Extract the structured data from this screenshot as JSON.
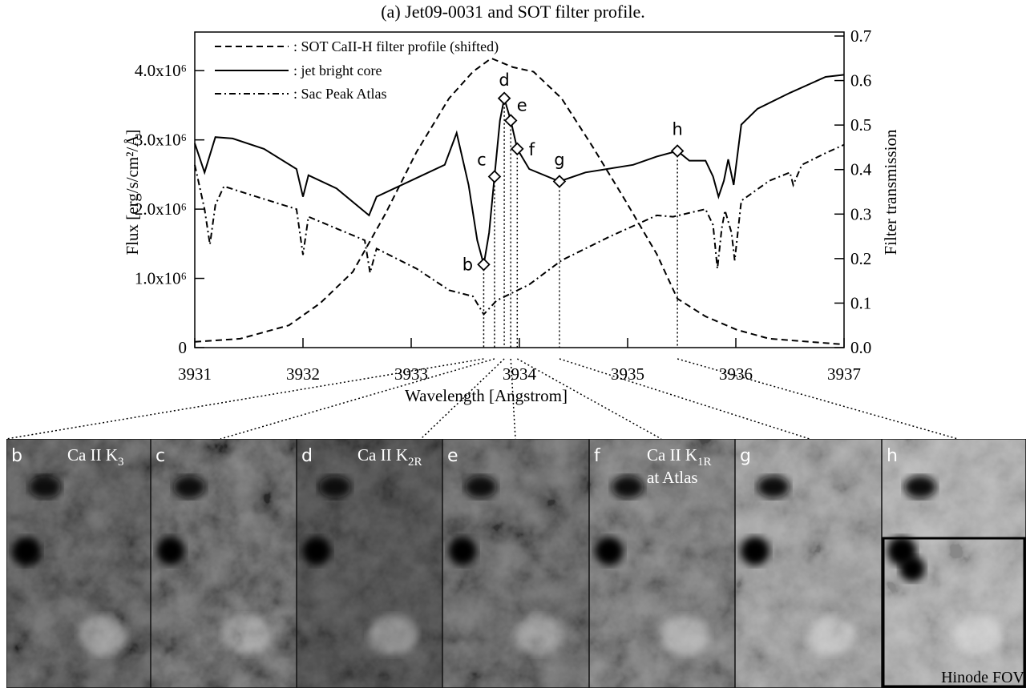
{
  "chart_data": {
    "type": "line",
    "title": "(a) Jet09-0031 and SOT filter profile.",
    "xlabel": "Wavelength [Angstrom]",
    "ylabel": "Flux [erg/s/cm²/Å]",
    "y2label": "Filter transmission",
    "xlim": [
      3931,
      3937
    ],
    "xticks": [
      3931,
      3932,
      3933,
      3934,
      3935,
      3936,
      3937
    ],
    "ylim": [
      0,
      4500000
    ],
    "yticks": [
      0,
      {
        "value": 1000000,
        "label": "1.0x10⁶"
      },
      {
        "value": 2000000,
        "label": "2.0x10⁶"
      },
      {
        "value": 3000000,
        "label": "3.0x10⁶"
      },
      {
        "value": 4000000,
        "label": "4.0x10⁶"
      }
    ],
    "y2lim": [
      0,
      0.7
    ],
    "y2ticks": [
      {
        "value": 0,
        "label": "0.0"
      },
      0.1,
      0.2,
      0.3,
      0.4,
      0.5,
      0.6,
      0.7
    ],
    "legend": "upper left",
    "series": [
      {
        "name": ": SOT CaII-H filter profile (shifted)",
        "color": "#000000",
        "dash": "dashed",
        "axis": "y2",
        "x": [
          3931.0,
          3931.42,
          3931.87,
          3932.16,
          3932.46,
          3932.76,
          3933.05,
          3933.35,
          3933.57,
          3933.74,
          3933.94,
          3934.13,
          3934.39,
          3934.68,
          3934.98,
          3935.27,
          3935.46,
          3935.72,
          3936.01,
          3936.31,
          3937.0
        ],
        "values": [
          0.013,
          0.02,
          0.05,
          0.1,
          0.17,
          0.3,
          0.44,
          0.56,
          0.62,
          0.65,
          0.63,
          0.62,
          0.56,
          0.45,
          0.33,
          0.21,
          0.11,
          0.07,
          0.04,
          0.02,
          0.007
        ]
      },
      {
        "name": ": jet bright core",
        "color": "#000000",
        "dash": "solid",
        "x": [
          3931.0,
          3931.09,
          3931.19,
          3931.35,
          3931.64,
          3931.94,
          3932.0,
          3932.05,
          3932.31,
          3932.61,
          3932.68,
          3933.05,
          3933.31,
          3933.42,
          3933.53,
          3933.61,
          3933.67,
          3933.72,
          3933.77,
          3933.82,
          3933.86,
          3933.92,
          3933.98,
          3934.09,
          3934.37,
          3934.61,
          3935.05,
          3935.27,
          3935.46,
          3935.57,
          3935.72,
          3935.79,
          3935.84,
          3935.89,
          3935.93,
          3935.98,
          3936.05,
          3936.2,
          3936.5,
          3936.83,
          3937.0
        ],
        "values": [
          2950000,
          2530000,
          3040000,
          3020000,
          2870000,
          2580000,
          2180000,
          2490000,
          2300000,
          1910000,
          2180000,
          2450000,
          2640000,
          3100000,
          2350000,
          1550000,
          1200000,
          1660000,
          2470000,
          3280000,
          3600000,
          3280000,
          2870000,
          2580000,
          2400000,
          2530000,
          2640000,
          2760000,
          2840000,
          2700000,
          2700000,
          2470000,
          2180000,
          2410000,
          2720000,
          2350000,
          3220000,
          3450000,
          3680000,
          3910000,
          3940000
        ]
      },
      {
        "name": ": Sac Peak Atlas",
        "color": "#000000",
        "dash": "dashdot",
        "x": [
          3931.0,
          3931.09,
          3931.14,
          3931.19,
          3931.27,
          3931.57,
          3931.94,
          3932.0,
          3932.05,
          3932.31,
          3932.57,
          3932.62,
          3932.68,
          3933.05,
          3933.35,
          3933.57,
          3933.67,
          3933.79,
          3934.09,
          3934.39,
          3934.83,
          3935.27,
          3935.42,
          3935.72,
          3935.79,
          3935.83,
          3935.87,
          3935.9,
          3935.96,
          3935.99,
          3936.05,
          3936.31,
          3936.5,
          3936.53,
          3936.61,
          3936.83,
          3937.0
        ],
        "values": [
          2640000,
          2000000,
          1490000,
          2060000,
          2330000,
          2180000,
          2000000,
          1340000,
          1890000,
          1720000,
          1550000,
          1080000,
          1430000,
          1140000,
          830000,
          740000,
          480000,
          680000,
          910000,
          1260000,
          1600000,
          1910000,
          1890000,
          2000000,
          1770000,
          1140000,
          1720000,
          1980000,
          1660000,
          1260000,
          2120000,
          2410000,
          2530000,
          2350000,
          2640000,
          2810000,
          2930000
        ]
      }
    ],
    "markers": [
      {
        "label": "b",
        "x": 3933.67,
        "y": 1200000
      },
      {
        "label": "c",
        "x": 3933.77,
        "y": 2470000
      },
      {
        "label": "d",
        "x": 3933.86,
        "y": 3600000
      },
      {
        "label": "e",
        "x": 3933.92,
        "y": 3280000
      },
      {
        "label": "f",
        "x": 3933.98,
        "y": 2870000
      },
      {
        "label": "g",
        "x": 3934.37,
        "y": 2400000
      },
      {
        "label": "h",
        "x": 3935.46,
        "y": 2840000
      }
    ]
  },
  "panels": [
    {
      "letter": "b",
      "label": "Ca II K",
      "sub": "3"
    },
    {
      "letter": "c"
    },
    {
      "letter": "d",
      "label": "Ca II K",
      "sub": "2R"
    },
    {
      "letter": "e"
    },
    {
      "letter": "f",
      "label": "Ca II K",
      "sub": "1R",
      "line2": "at Atlas"
    },
    {
      "letter": "g"
    },
    {
      "letter": "h",
      "inset": "Hinode FOV"
    }
  ]
}
